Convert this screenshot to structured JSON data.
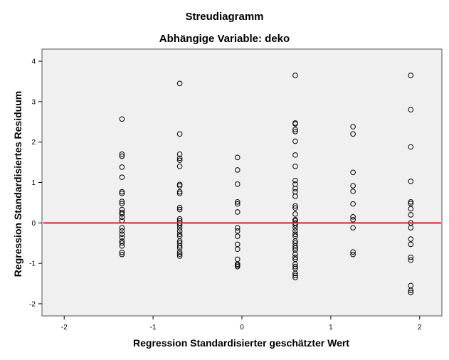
{
  "chart_data": {
    "type": "scatter",
    "title": "Streudiagramm",
    "subtitle": "Abhängige Variable: deko",
    "xlabel": "Regression Standardisierter geschätzter Wert",
    "ylabel": "Regression Standardisiertes Residuum",
    "xlim": [
      -2.25,
      2.25
    ],
    "ylim": [
      -2.3,
      4.3
    ],
    "xticks": [
      -2,
      -1,
      0,
      1,
      2
    ],
    "yticks": [
      -2,
      -1,
      0,
      1,
      2,
      3,
      4
    ],
    "grid": false,
    "plot_background": "#f0f0f0",
    "marker": "open-circle",
    "reference_line": {
      "y": 0,
      "color": "#d62020"
    },
    "points": [
      [
        -1.35,
        2.57
      ],
      [
        -1.35,
        1.7
      ],
      [
        -1.35,
        1.65
      ],
      [
        -1.35,
        1.38
      ],
      [
        -1.35,
        1.13
      ],
      [
        -1.35,
        0.77
      ],
      [
        -1.35,
        0.73
      ],
      [
        -1.35,
        0.53
      ],
      [
        -1.35,
        0.48
      ],
      [
        -1.35,
        0.33
      ],
      [
        -1.35,
        0.26
      ],
      [
        -1.35,
        0.22
      ],
      [
        -1.35,
        0.14
      ],
      [
        -1.35,
        0.06
      ],
      [
        -1.35,
        -0.12
      ],
      [
        -1.35,
        -0.2
      ],
      [
        -1.35,
        -0.28
      ],
      [
        -1.35,
        -0.36
      ],
      [
        -1.35,
        -0.45
      ],
      [
        -1.35,
        -0.5
      ],
      [
        -1.35,
        -0.57
      ],
      [
        -1.35,
        -0.73
      ],
      [
        -1.35,
        -0.78
      ],
      [
        -0.7,
        3.45
      ],
      [
        -0.7,
        2.2
      ],
      [
        -0.7,
        1.7
      ],
      [
        -0.7,
        1.6
      ],
      [
        -0.7,
        1.55
      ],
      [
        -0.7,
        1.4
      ],
      [
        -0.7,
        0.95
      ],
      [
        -0.7,
        0.92
      ],
      [
        -0.7,
        0.77
      ],
      [
        -0.7,
        0.73
      ],
      [
        -0.7,
        0.38
      ],
      [
        -0.7,
        0.33
      ],
      [
        -0.7,
        0.1
      ],
      [
        -0.7,
        0.05
      ],
      [
        -0.7,
        0.0
      ],
      [
        -0.7,
        -0.05
      ],
      [
        -0.7,
        -0.12
      ],
      [
        -0.7,
        -0.2
      ],
      [
        -0.7,
        -0.28
      ],
      [
        -0.7,
        -0.33
      ],
      [
        -0.7,
        -0.45
      ],
      [
        -0.7,
        -0.5
      ],
      [
        -0.7,
        -0.57
      ],
      [
        -0.7,
        -0.62
      ],
      [
        -0.7,
        -0.72
      ],
      [
        -0.7,
        -0.77
      ],
      [
        -0.7,
        -0.82
      ],
      [
        -0.05,
        1.62
      ],
      [
        -0.05,
        1.31
      ],
      [
        -0.05,
        0.96
      ],
      [
        -0.05,
        0.52
      ],
      [
        -0.05,
        0.47
      ],
      [
        -0.05,
        0.27
      ],
      [
        -0.05,
        -0.12
      ],
      [
        -0.05,
        -0.2
      ],
      [
        -0.05,
        -0.33
      ],
      [
        -0.05,
        -0.53
      ],
      [
        -0.05,
        -0.65
      ],
      [
        -0.05,
        -0.9
      ],
      [
        -0.05,
        -1.02
      ],
      [
        -0.05,
        -1.05
      ],
      [
        -0.05,
        -1.08
      ],
      [
        0.6,
        3.65
      ],
      [
        0.6,
        2.47
      ],
      [
        0.6,
        2.45
      ],
      [
        0.6,
        2.31
      ],
      [
        0.6,
        2.26
      ],
      [
        0.6,
        2.02
      ],
      [
        0.6,
        1.68
      ],
      [
        0.6,
        1.4
      ],
      [
        0.6,
        1.05
      ],
      [
        0.6,
        0.96
      ],
      [
        0.6,
        0.85
      ],
      [
        0.6,
        0.77
      ],
      [
        0.6,
        0.66
      ],
      [
        0.6,
        0.42
      ],
      [
        0.6,
        0.37
      ],
      [
        0.6,
        0.22
      ],
      [
        0.6,
        0.08
      ],
      [
        0.6,
        0.05
      ],
      [
        0.6,
        0.0
      ],
      [
        0.6,
        -0.05
      ],
      [
        0.6,
        -0.12
      ],
      [
        0.6,
        -0.2
      ],
      [
        0.6,
        -0.28
      ],
      [
        0.6,
        -0.33
      ],
      [
        0.6,
        -0.45
      ],
      [
        0.6,
        -0.5
      ],
      [
        0.6,
        -0.57
      ],
      [
        0.6,
        -0.62
      ],
      [
        0.6,
        -0.67
      ],
      [
        0.6,
        -0.77
      ],
      [
        0.6,
        -0.85
      ],
      [
        0.6,
        -0.9
      ],
      [
        0.6,
        -1.02
      ],
      [
        0.6,
        -1.08
      ],
      [
        0.6,
        -1.13
      ],
      [
        0.6,
        -1.25
      ],
      [
        0.6,
        -1.3
      ],
      [
        0.6,
        -1.35
      ],
      [
        1.25,
        2.38
      ],
      [
        1.25,
        2.2
      ],
      [
        1.25,
        1.25
      ],
      [
        1.25,
        0.92
      ],
      [
        1.25,
        0.78
      ],
      [
        1.25,
        0.47
      ],
      [
        1.25,
        0.15
      ],
      [
        1.25,
        0.08
      ],
      [
        1.25,
        -0.12
      ],
      [
        1.25,
        -0.72
      ],
      [
        1.25,
        -0.78
      ],
      [
        1.9,
        3.65
      ],
      [
        1.9,
        2.8
      ],
      [
        1.9,
        1.88
      ],
      [
        1.9,
        1.03
      ],
      [
        1.9,
        0.52
      ],
      [
        1.9,
        0.48
      ],
      [
        1.9,
        0.35
      ],
      [
        1.9,
        0.2
      ],
      [
        1.9,
        0.0
      ],
      [
        1.9,
        -0.12
      ],
      [
        1.9,
        -0.4
      ],
      [
        1.9,
        -0.53
      ],
      [
        1.9,
        -0.85
      ],
      [
        1.9,
        -0.92
      ],
      [
        1.9,
        -1.55
      ],
      [
        1.9,
        -1.67
      ],
      [
        1.9,
        -1.72
      ]
    ]
  }
}
